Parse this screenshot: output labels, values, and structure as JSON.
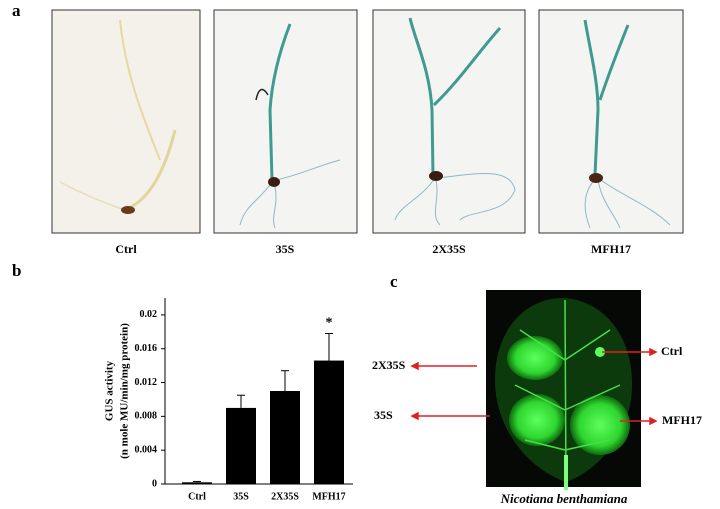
{
  "panel_labels": [
    "a",
    "b",
    "c"
  ],
  "panel_a": {
    "labels": [
      "Ctrl",
      "35S",
      "2X35S",
      "MFH17"
    ]
  },
  "chart_data": {
    "type": "bar",
    "ylabel": [
      "GUS activity",
      "(n mole MU/min/mg protein)"
    ],
    "categories": [
      "Ctrl",
      "35S",
      "2X35S",
      "MFH17"
    ],
    "values": [
      0.0002,
      0.009,
      0.011,
      0.0146
    ],
    "errors": [
      0.0001,
      0.0015,
      0.0024,
      0.0032
    ],
    "color": "#000000",
    "ylim": [
      0,
      0.022
    ],
    "yticks": [
      0,
      0.004,
      0.008,
      0.012,
      0.016,
      0.02
    ],
    "annotations": [
      {
        "text": "*",
        "category": "MFH17"
      }
    ]
  },
  "panel_c": {
    "labels": [
      "2X35S",
      "Ctrl",
      "35S",
      "MFH17"
    ],
    "caption": "Nicotiana benthamiana"
  }
}
